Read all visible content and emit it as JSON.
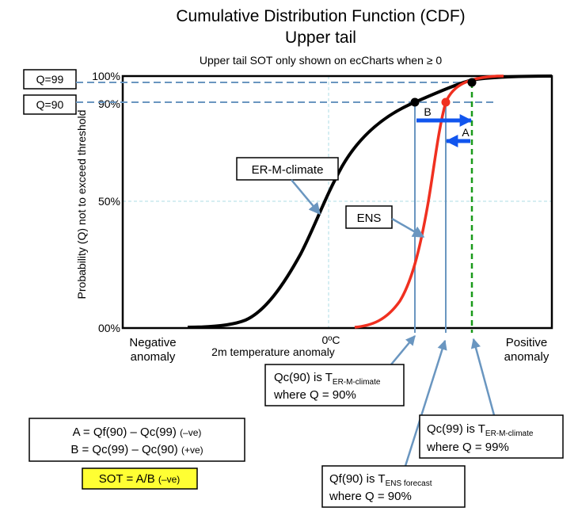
{
  "title": "Cumulative Distribution Function (CDF)",
  "subtitle": "Upper tail",
  "note": "Upper tail SOT only shown on ecCharts when ≥ 0",
  "y_axis_label": "Probability (Q) not to exceed threshold",
  "x_axis_label": "2m temperature anomaly",
  "y_ticks": [
    "100%",
    "90%",
    "50%",
    "00%"
  ],
  "x_tick_zero": "0ºC",
  "x_left": [
    "Negative",
    "anomaly"
  ],
  "x_right": [
    "Positive",
    "anomaly"
  ],
  "box_q99": "Q=99",
  "box_q90": "Q=90",
  "label_climate": "ER-M-climate",
  "label_ens": "ENS",
  "label_a": "A",
  "label_b": "B",
  "callout_qc90": {
    "pre": "Qc(90) is T",
    "sub": "ER-M-climate",
    "line2": "where Q = 90%"
  },
  "callout_qc99": {
    "pre": "Qc(99) is T",
    "sub": "ER-M-climate",
    "line2": "where Q = 99%"
  },
  "callout_qf90": {
    "pre": "Qf(90) is T",
    "sub": "ENS forecast",
    "line2": "where Q = 90%"
  },
  "formula": {
    "a_eq": "A = Qf(90) – Qc(99)",
    "a_sign": "(–ve)",
    "b_eq": "B = Qc(99) – Qc(90)",
    "b_sign": "(+ve)",
    "sot": "SOT = A/B",
    "sot_sign": "(–ve)"
  },
  "colors": {
    "climate_curve": "#000000",
    "ens_curve": "#f03020",
    "dashed_blue": "#6a96c0",
    "grid": "#c8e8ee",
    "arrow_blue": "#1155ee",
    "dashed_green": "#1a9a1a",
    "sot_highlight": "#ffff33"
  }
}
